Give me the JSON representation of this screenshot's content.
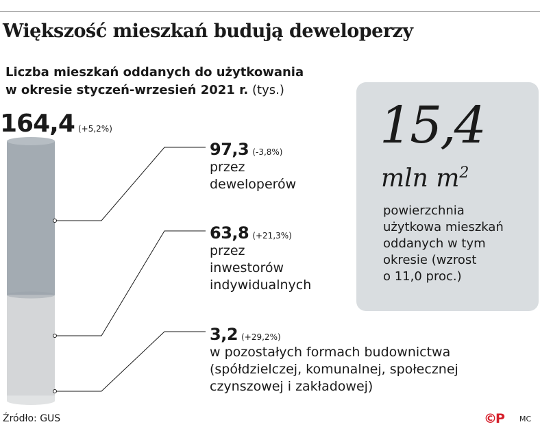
{
  "headline": "Większość mieszkań budują deweloperzy",
  "subtitle": {
    "line1_bold": "Liczba mieszkań oddanych do użytkowania",
    "line2_bold": "w okresie styczeń-wrzesień 2021 r.",
    "line2_unit": "(tys.)"
  },
  "chart_data": {
    "type": "bar",
    "subtype": "stacked-cylinder",
    "unit": "tys.",
    "total": {
      "label": "164,4",
      "value": 164.4,
      "change": "(+5,2%)"
    },
    "series": [
      {
        "name": "przez deweloperów",
        "value": 97.3,
        "label": "97,3",
        "change": "(-3,8%)",
        "desc": [
          "przez",
          "deweloperów"
        ],
        "color": "#a3abb2"
      },
      {
        "name": "przez inwestorów indywidualnych",
        "value": 63.8,
        "label": "63,8",
        "change": "(+21,3%)",
        "desc": [
          "przez",
          "inwestorów",
          "indywidualnych"
        ],
        "color": "#d4d6d8"
      },
      {
        "name": "w pozostałych formach budownictwa (spółdzielczej, komunalnej, społecznej czynszowej i zakładowej)",
        "value": 3.2,
        "label": "3,2",
        "change": "(+29,2%)",
        "desc": [
          "w pozostałych formach budownictwa",
          "(spółdzielczej, komunalnej, społecznej",
          "czynszowej i zakładowej)"
        ],
        "color": "#e1e3e4"
      }
    ]
  },
  "kpi": {
    "number": "15,4",
    "unit": "mln m",
    "unit_sup": "2",
    "desc": [
      "powierzchnia",
      "użytkowa mieszkań",
      "oddanych w tym",
      "okresie (wzrost",
      "o 11,0 proc.)"
    ]
  },
  "source": "Źródło: GUS",
  "logo": "©P",
  "author": "MC",
  "colors": {
    "panel": "#d9dde0",
    "logo": "#d6202b",
    "leader": "#1a1a1a"
  }
}
